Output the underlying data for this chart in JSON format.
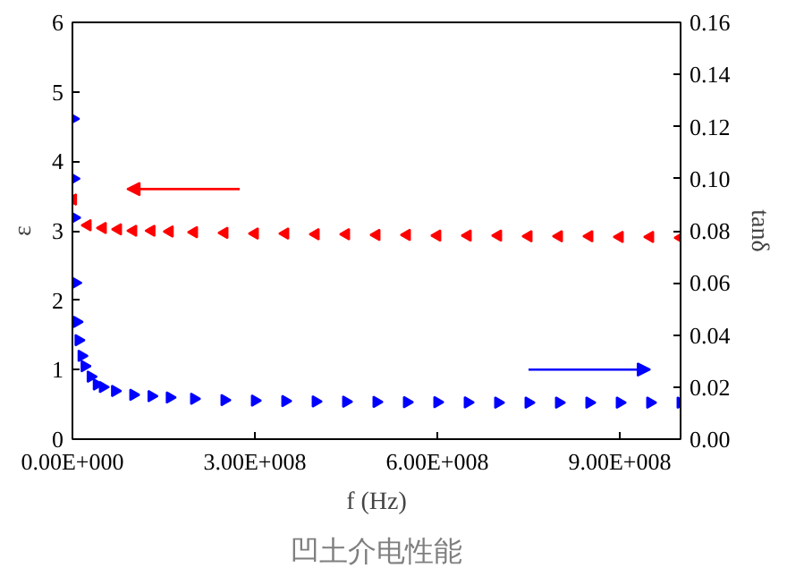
{
  "chart_data": {
    "type": "scatter",
    "xlabel": "f (Hz)",
    "ylabel": "ε",
    "y2label": "tanδ",
    "annotations": [
      "凹土介电性能"
    ],
    "x": [
      1000000.0,
      2000000.0,
      3000000.0,
      5000000.0,
      7000000.0,
      10000000.0,
      15000000.0,
      20000000.0,
      30000000.0,
      40000000.0,
      50000000.0,
      70000000.0,
      100000000.0,
      130000000.0,
      160000000.0,
      200000000.0,
      250000000.0,
      300000000.0,
      350000000.0,
      400000000.0,
      450000000.0,
      500000000.0,
      550000000.0,
      600000000.0,
      650000000.0,
      700000000.0,
      750000000.0,
      800000000.0,
      850000000.0,
      900000000.0,
      950000000.0,
      1000000000.0
    ],
    "series": [
      {
        "color": "#ff0000",
        "x": [
          1000000.0,
          25000000.0,
          50000000.0,
          75000000.0,
          100000000.0,
          130000000.0,
          160000000.0,
          200000000.0,
          250000000.0,
          300000000.0,
          350000000.0,
          400000000.0,
          450000000.0,
          500000000.0,
          550000000.0,
          600000000.0,
          650000000.0,
          700000000.0,
          750000000.0,
          800000000.0,
          850000000.0,
          900000000.0,
          950000000.0,
          1000000000.0
        ],
        "values": [
          3.45,
          3.08,
          3.04,
          3.02,
          3.0,
          3.0,
          2.99,
          2.98,
          2.97,
          2.96,
          2.96,
          2.95,
          2.95,
          2.94,
          2.94,
          2.93,
          2.93,
          2.93,
          2.92,
          2.92,
          2.92,
          2.91,
          2.91,
          2.9
        ]
      },
      {
        "color": "#0000ff",
        "axis": "y2",
        "values": [
          0.123,
          0.1,
          0.085,
          0.06,
          0.045,
          0.038,
          0.032,
          0.028,
          0.024,
          0.021,
          0.02,
          0.0185,
          0.017,
          0.0165,
          0.016,
          0.0155,
          0.015,
          0.0148,
          0.0146,
          0.0145,
          0.0144,
          0.0143,
          0.0142,
          0.0142,
          0.0141,
          0.014,
          0.014,
          0.014,
          0.014,
          0.014,
          0.014,
          0.014
        ]
      }
    ],
    "marker": "triangle",
    "grid": false,
    "xlim": [
      0,
      1000000000.0
    ],
    "xticks": [
      {
        "value": 0,
        "label": "0.00E+000"
      },
      {
        "value": 300000000.0,
        "label": "3.00E+008"
      },
      {
        "value": 600000000.0,
        "label": "6.00E+008"
      },
      {
        "value": 900000000.0,
        "label": "9.00E+008"
      }
    ],
    "ylim": [
      0,
      6
    ],
    "yticks": [
      0,
      1,
      2,
      3,
      4,
      5,
      6
    ],
    "y2lim": [
      0,
      0.16
    ],
    "y2ticks": [
      {
        "value": 0,
        "label": "0.00"
      },
      {
        "value": 0.02,
        "label": "0.02"
      },
      {
        "value": 0.04,
        "label": "0.04"
      },
      {
        "value": 0.06,
        "label": "0.06"
      },
      {
        "value": 0.08,
        "label": "0.08"
      },
      {
        "value": 0.1,
        "label": "0.10"
      },
      {
        "value": 0.12,
        "label": "0.12"
      },
      {
        "value": 0.14,
        "label": "0.14"
      },
      {
        "value": 0.16,
        "label": "0.16"
      }
    ]
  }
}
